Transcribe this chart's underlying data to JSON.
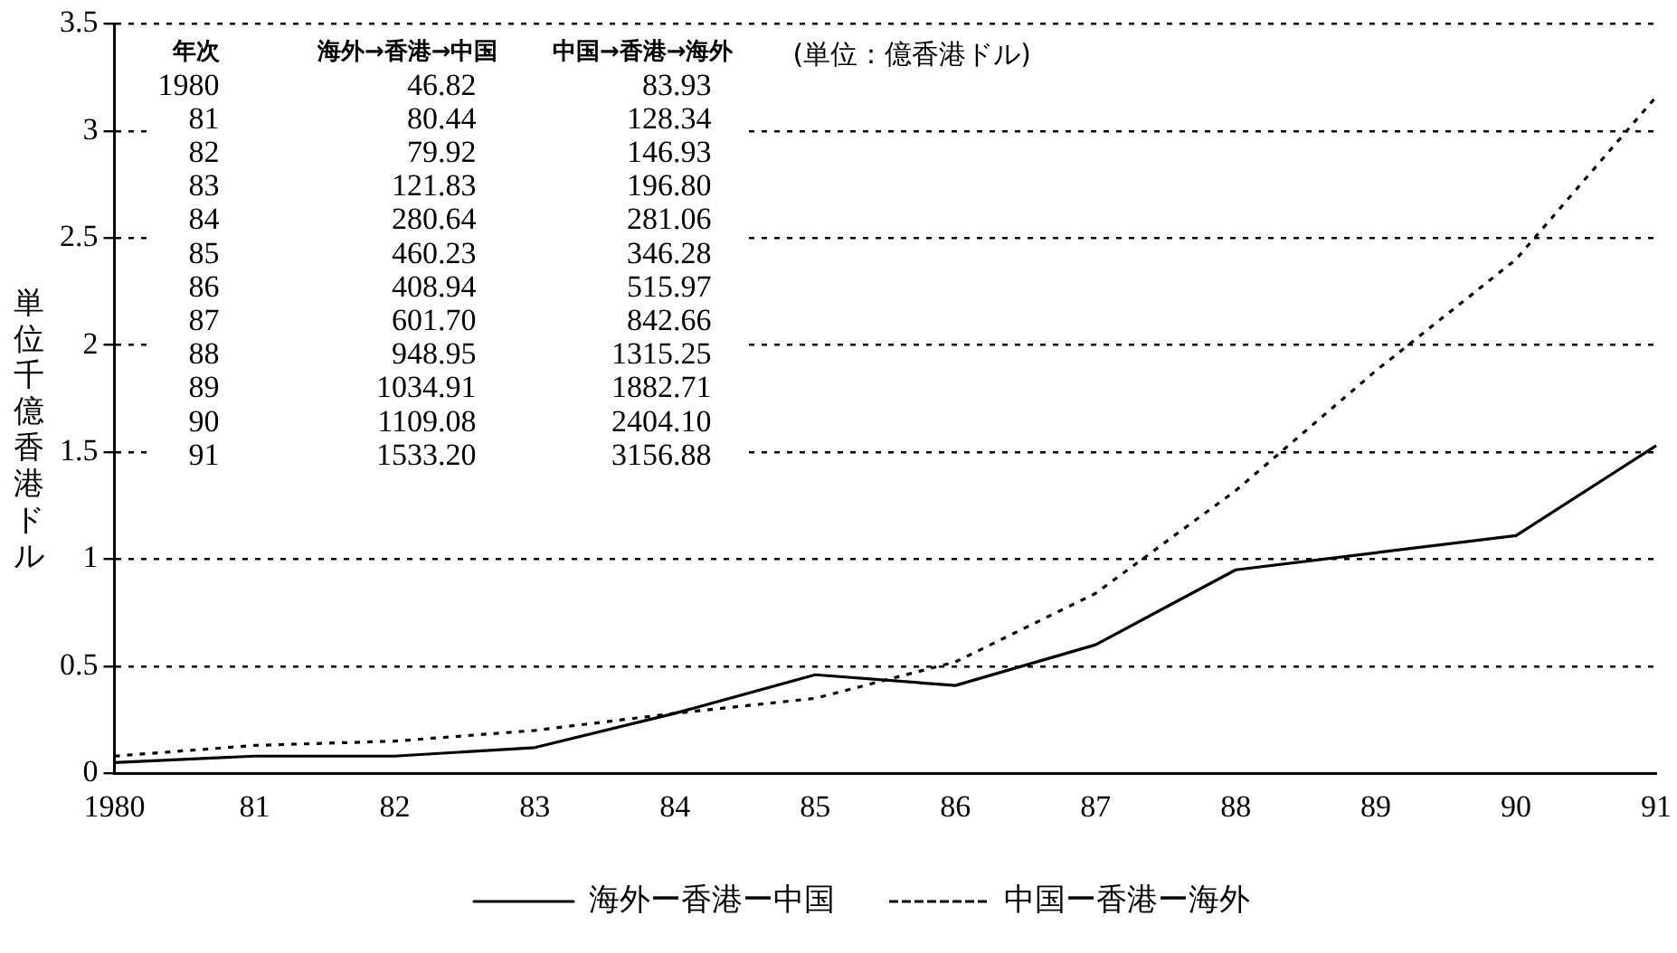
{
  "chart_data": {
    "type": "line",
    "ylabel": "単位千億香港ドル",
    "categories": [
      "1980",
      "81",
      "82",
      "83",
      "84",
      "85",
      "86",
      "87",
      "88",
      "89",
      "90",
      "91"
    ],
    "series": [
      {
        "name": "海外ー香港ー中国",
        "color": "#000000",
        "line_style": "solid",
        "values": [
          0.05,
          0.08,
          0.08,
          0.12,
          0.28,
          0.46,
          0.41,
          0.6,
          0.95,
          1.03,
          1.11,
          1.53
        ]
      },
      {
        "name": "中国ー香港ー海外",
        "color": "#000000",
        "line_style": "dotted",
        "values": [
          0.08,
          0.13,
          0.15,
          0.2,
          0.28,
          0.35,
          0.52,
          0.84,
          1.32,
          1.88,
          2.4,
          3.16
        ]
      }
    ],
    "annotations": [
      "(単位：億香港ドル)",
      "年次",
      "海外→香港→中国",
      "中国→香港→海外",
      "1980",
      "46.82",
      "83.93",
      "81",
      "80.44",
      "128.34",
      "82",
      "79.92",
      "146.93",
      "83",
      "121.83",
      "196.80",
      "84",
      "280.64",
      "281.06",
      "85",
      "460.23",
      "346.28",
      "86",
      "408.94",
      "515.97",
      "87",
      "601.70",
      "842.66",
      "88",
      "948.95",
      "1315.25",
      "89",
      "1034.91",
      "1882.71",
      "90",
      "1109.08",
      "2404.10",
      "91",
      "1533.20",
      "3156.88"
    ],
    "ylim": [
      0,
      3.5
    ],
    "yticks": [
      0,
      0.5,
      1,
      1.5,
      2,
      2.5,
      3,
      3.5
    ],
    "grid": "y",
    "legend": "bottom",
    "marker": "none"
  }
}
